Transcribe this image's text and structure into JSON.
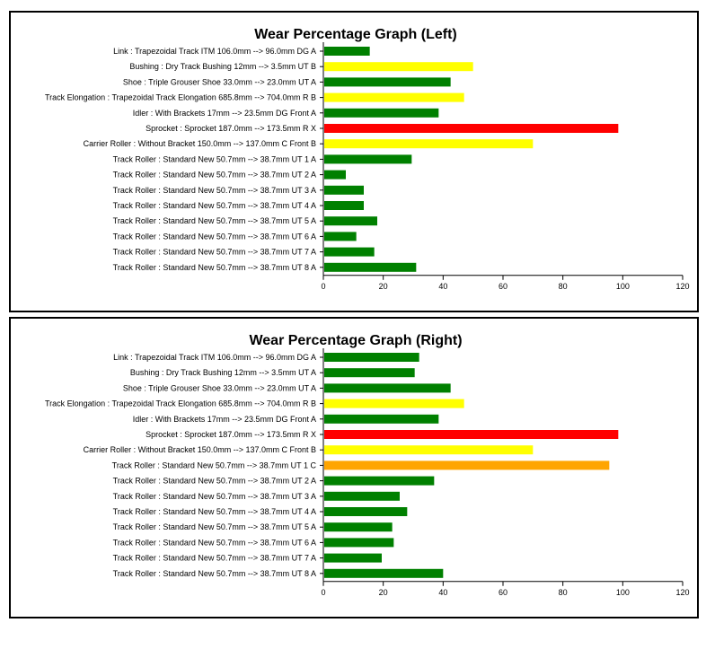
{
  "chart_data": [
    {
      "type": "bar",
      "orientation": "horizontal",
      "title": "Wear Percentage Graph (Left)",
      "xlim": [
        0,
        120
      ],
      "xticks": [
        0,
        20,
        40,
        60,
        80,
        100,
        120
      ],
      "categories": [
        "Link : Trapezoidal Track ITM 106.0mm --> 96.0mm DG  A",
        "Bushing : Dry Track Bushing 12mm --> 3.5mm UT  B",
        "Shoe : Triple Grouser Shoe 33.0mm --> 23.0mm UT  A",
        "Track Elongation : Trapezoidal Track Elongation 685.8mm --> 704.0mm R  B",
        "Idler : With Brackets 17mm --> 23.5mm DG Front A",
        "Sprocket : Sprocket 187.0mm --> 173.5mm R  X",
        "Carrier Roller : Without Bracket 150.0mm --> 137.0mm C Front B",
        "Track Roller : Standard New 50.7mm --> 38.7mm UT 1 A",
        "Track Roller : Standard New 50.7mm --> 38.7mm UT 2 A",
        "Track Roller : Standard New 50.7mm --> 38.7mm UT 3 A",
        "Track Roller : Standard New 50.7mm --> 38.7mm UT 4 A",
        "Track Roller : Standard New 50.7mm --> 38.7mm UT 5 A",
        "Track Roller : Standard New 50.7mm --> 38.7mm UT 6 A",
        "Track Roller : Standard New 50.7mm --> 38.7mm UT 7 A",
        "Track Roller : Standard New 50.7mm --> 38.7mm UT 8 A"
      ],
      "values": [
        15.5,
        50,
        42.5,
        47,
        38.5,
        98.5,
        70,
        29.5,
        7.5,
        13.5,
        13.5,
        18,
        11,
        17,
        31
      ],
      "colors": [
        "#008000",
        "#ffff00",
        "#008000",
        "#ffff00",
        "#008000",
        "#ff0000",
        "#ffff00",
        "#008000",
        "#008000",
        "#008000",
        "#008000",
        "#008000",
        "#008000",
        "#008000",
        "#008000"
      ]
    },
    {
      "type": "bar",
      "orientation": "horizontal",
      "title": "Wear Percentage Graph (Right)",
      "xlim": [
        0,
        120
      ],
      "xticks": [
        0,
        20,
        40,
        60,
        80,
        100,
        120
      ],
      "categories": [
        "Link : Trapezoidal Track ITM 106.0mm --> 96.0mm DG  A",
        "Bushing : Dry Track Bushing 12mm --> 3.5mm UT  A",
        "Shoe : Triple Grouser Shoe 33.0mm --> 23.0mm UT  A",
        "Track Elongation : Trapezoidal Track Elongation 685.8mm --> 704.0mm R  B",
        "Idler : With Brackets 17mm --> 23.5mm DG Front A",
        "Sprocket : Sprocket 187.0mm --> 173.5mm R  X",
        "Carrier Roller : Without Bracket 150.0mm --> 137.0mm C Front B",
        "Track Roller : Standard New 50.7mm --> 38.7mm UT 1 C",
        "Track Roller : Standard New 50.7mm --> 38.7mm UT 2 A",
        "Track Roller : Standard New 50.7mm --> 38.7mm UT 3 A",
        "Track Roller : Standard New 50.7mm --> 38.7mm UT 4 A",
        "Track Roller : Standard New 50.7mm --> 38.7mm UT 5 A",
        "Track Roller : Standard New 50.7mm --> 38.7mm UT 6 A",
        "Track Roller : Standard New 50.7mm --> 38.7mm UT 7 A",
        "Track Roller : Standard New 50.7mm --> 38.7mm UT 8 A"
      ],
      "values": [
        32,
        30.5,
        42.5,
        47,
        38.5,
        98.5,
        70,
        95.5,
        37,
        25.5,
        28,
        23,
        23.5,
        19.5,
        40
      ],
      "colors": [
        "#008000",
        "#008000",
        "#008000",
        "#ffff00",
        "#008000",
        "#ff0000",
        "#ffff00",
        "#ffa500",
        "#008000",
        "#008000",
        "#008000",
        "#008000",
        "#008000",
        "#008000",
        "#008000"
      ]
    }
  ]
}
